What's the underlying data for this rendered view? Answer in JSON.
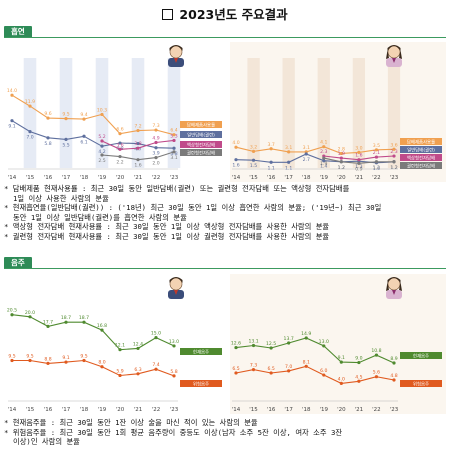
{
  "title": "2023년도 주요결과",
  "sections": {
    "smoking": {
      "label": "흡연",
      "notes": [
        "담배제품 현재사용률 : 최근 30일 동안 일반담배(궐련) 또는 궐련형 전자담배 또는 액상형 전자담배를",
        "1일 이상 사용한 사람의 분율",
        "현재흡연율(일반담배(궐련)) : ('18년) 최근 30일 동안 1일 이상 흡연한 사람의 분율; ('19년~) 최근 30일",
        "동안 1일 이상 일반담배(궐련)를 흡연한 사람의 분율",
        "액상형 전자담배 현재사용률 : 최근 30일 동안 1일 이상 액상형 전자담배를 사용한 사람의 분율",
        "궐련형 전자담배 현재사용률 : 최근 30일 동안 1일 이상 궐련형 전자담배를 사용한 사람의 분율"
      ]
    },
    "drinking": {
      "label": "음주",
      "notes": [
        "현재음주율 : 최근 30일 동안 1잔 이상 술을 마신 적이 있는 사람의 분율",
        "위험음주율 : 최근 30일 동안 1회 평균 음주량이 중등도 이상(남자 소주 5잔 이상, 여자 소주 3잔",
        "이상)인 사람의 분율"
      ]
    }
  },
  "chart_data": [
    {
      "type": "line",
      "panel": "smoking-male",
      "categories": [
        "'14",
        "'15",
        "'16",
        "'17",
        "'18",
        "'19",
        "'20",
        "'21",
        "'22",
        "'23"
      ],
      "ylim": [
        0,
        20
      ],
      "series": [
        {
          "name": "",
          "color": "#f0a050",
          "values": [
            14.0,
            11.9,
            9.6,
            9.5,
            9.4,
            10.3,
            6.6,
            7.2,
            7.3,
            6.4
          ]
        },
        {
          "name": "",
          "color": "#5e6f9e",
          "values": [
            9.1,
            7.0,
            5.8,
            5.5,
            6.1,
            4.2,
            4.8,
            4.7,
            3.9,
            3.8
          ]
        },
        {
          "name": "",
          "color": "#c04a8a",
          "values": [
            null,
            null,
            null,
            null,
            null,
            5.2,
            3.6,
            3.8,
            4.9,
            5.3
          ]
        },
        {
          "name": "",
          "color": "#7a7a7a",
          "values": [
            null,
            null,
            null,
            null,
            null,
            2.5,
            2.2,
            1.6,
            2.0,
            3.1
          ]
        }
      ],
      "legend_labels": [
        "담배제품사용률",
        "일반담배(궐련)",
        "액상형전자담배",
        "궐련형전자담배"
      ],
      "shaded_years": [
        "'15",
        "'17",
        "'19",
        "'21",
        "'23"
      ]
    },
    {
      "type": "line",
      "panel": "smoking-female",
      "categories": [
        "'14",
        "'15",
        "'16",
        "'17",
        "'18",
        "'19",
        "'20",
        "'21",
        "'22",
        "'23"
      ],
      "ylim": [
        0,
        20
      ],
      "series": [
        {
          "name": "",
          "color": "#f0a050",
          "values": [
            4.0,
            3.2,
            3.7,
            3.1,
            3.1,
            4.1,
            2.8,
            3.0,
            3.5,
            3.6
          ]
        },
        {
          "name": "",
          "color": "#5e6f9e",
          "values": [
            1.6,
            1.5,
            1.1,
            1.1,
            2.7,
            1.4,
            1.2,
            1.3,
            1.0,
            1.2
          ]
        },
        {
          "name": "",
          "color": "#c04a8a",
          "values": [
            null,
            null,
            null,
            null,
            null,
            2.3,
            1.9,
            1.6,
            2.1,
            2.3
          ]
        },
        {
          "name": "",
          "color": "#7a7a7a",
          "values": [
            null,
            null,
            null,
            null,
            null,
            1.9,
            1.2,
            0.9,
            1.2,
            1.2
          ]
        }
      ],
      "legend_labels": [
        "담배제품사용률",
        "일반담배(궐련)",
        "액상형전자담배",
        "궐련형전자담배"
      ],
      "shaded_years": [
        "'15",
        "'17",
        "'19",
        "'21",
        "'23"
      ]
    },
    {
      "type": "line",
      "panel": "drinking-male",
      "categories": [
        "'14",
        "'15",
        "'16",
        "'17",
        "'18",
        "'19",
        "'20",
        "'21",
        "'22",
        "'23"
      ],
      "ylim": [
        0,
        25
      ],
      "series": [
        {
          "name": "",
          "color": "#4f8a2f",
          "values": [
            20.5,
            20.0,
            17.7,
            18.7,
            18.7,
            16.8,
            12.1,
            12.4,
            15.0,
            13.0
          ]
        },
        {
          "name": "",
          "color": "#e05a1f",
          "values": [
            9.5,
            9.5,
            8.8,
            9.1,
            9.5,
            8.0,
            5.9,
            6.3,
            7.4,
            5.8
          ]
        }
      ],
      "legend_labels": [
        "현재음주",
        "위험음주"
      ],
      "shaded_years": []
    },
    {
      "type": "line",
      "panel": "drinking-female",
      "categories": [
        "'14",
        "'15",
        "'16",
        "'17",
        "'18",
        "'19",
        "'20",
        "'21",
        "'22",
        "'23"
      ],
      "ylim": [
        0,
        25
      ],
      "series": [
        {
          "name": "",
          "color": "#4f8a2f",
          "values": [
            12.6,
            13.1,
            12.5,
            13.7,
            14.9,
            13.0,
            9.1,
            9.0,
            10.8,
            8.9
          ]
        },
        {
          "name": "",
          "color": "#e05a1f",
          "values": [
            6.5,
            7.3,
            6.5,
            7.0,
            8.1,
            6.0,
            4.0,
            4.5,
            5.6,
            4.8
          ]
        }
      ],
      "legend_labels": [
        "현재음주",
        "위험음주"
      ],
      "shaded_years": []
    }
  ]
}
